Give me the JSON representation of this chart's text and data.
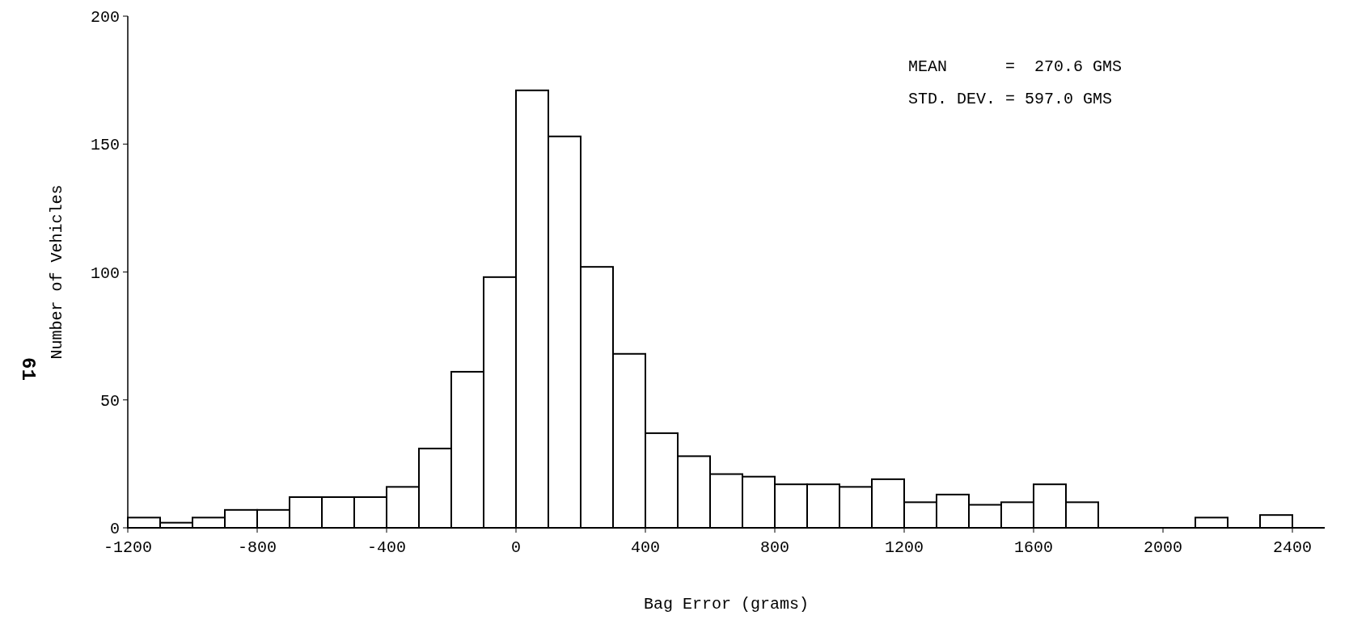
{
  "chart_data": {
    "type": "histogram",
    "xlabel": "Bag Error (grams)",
    "ylabel": "Number of Vehicles",
    "bins": [
      -1200,
      -1100,
      -1000,
      -900,
      -800,
      -700,
      -600,
      -500,
      -400,
      -300,
      -200,
      -100,
      0,
      100,
      200,
      300,
      400,
      500,
      600,
      700,
      800,
      900,
      1000,
      1100,
      1200,
      1300,
      1400,
      1500,
      1600,
      1700,
      1800,
      1900,
      2000,
      2100,
      2200,
      2300,
      2400,
      2500
    ],
    "values": [
      4,
      2,
      4,
      7,
      7,
      12,
      12,
      12,
      16,
      31,
      61,
      98,
      171,
      153,
      102,
      68,
      37,
      28,
      21,
      20,
      17,
      17,
      16,
      19,
      10,
      13,
      9,
      10,
      17,
      10,
      0,
      0,
      0,
      4,
      0,
      5,
      0
    ],
    "color": "#ffffff",
    "xlim": [
      -1200,
      2500
    ],
    "xticks": [
      -1200,
      -800,
      -400,
      0,
      400,
      800,
      1200,
      1600,
      2000,
      2400
    ],
    "ylim": [
      0,
      200
    ],
    "yticks": [
      0,
      50,
      100,
      150,
      200
    ],
    "annotations": [
      "MEAN      =  270.6 GMS",
      "STD. DEV. = 597.0 GMS",
      "61"
    ]
  }
}
